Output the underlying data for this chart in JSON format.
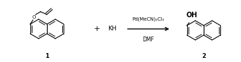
{
  "background_color": "#ffffff",
  "fig_width": 3.49,
  "fig_height": 0.9,
  "dpi": 100,
  "text_color": "#000000",
  "reagent_above": "Pd(MeCN)₂Cl₂",
  "reagent_below": "DMF",
  "label1": "1",
  "label2": "2"
}
